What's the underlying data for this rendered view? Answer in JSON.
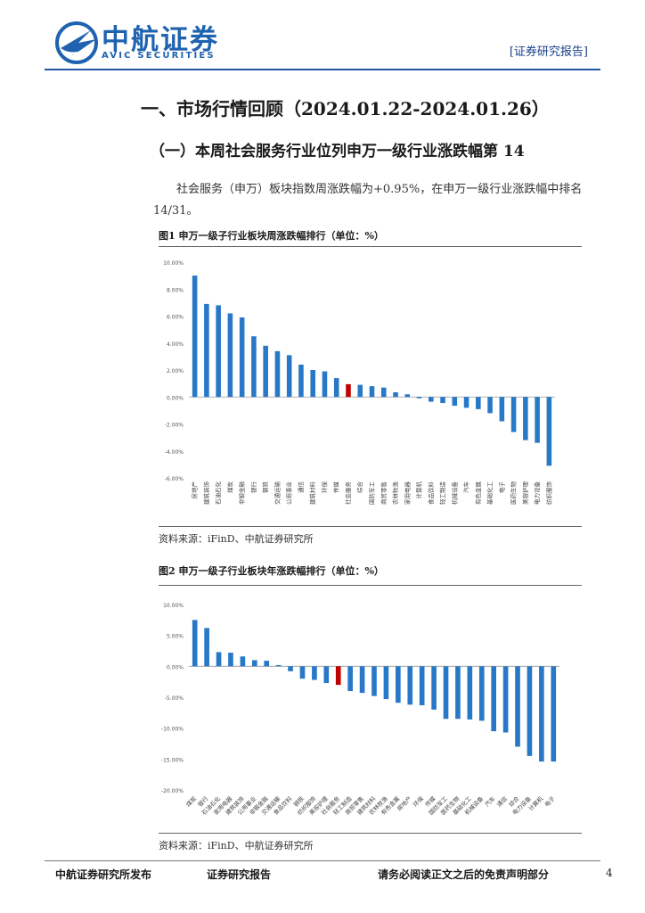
{
  "header": {
    "logo_cn": "中航证券",
    "logo_en": "AVIC SECURITIES",
    "tag": "[证券研究报告]",
    "colors": {
      "brand": "#1f63b0",
      "rule": "#2458a6"
    }
  },
  "section": {
    "title": "一、市场行情回顾（2024.01.22-2024.01.26）",
    "subtitle": "（一）本周社会服务行业位列申万一级行业涨跌幅第 14",
    "para_line1": "社会服务（申万）板块指数周涨跌幅为+0.95%，在申万一级行业涨跌幅中排名",
    "para_line2": "14/31。"
  },
  "figures": [
    {
      "title": "图1 申万一级子行业板块周涨跌幅排行（单位：%）",
      "source": "资料来源：iFinD、中航证券研究所"
    },
    {
      "title": "图2 申万一级子行业板块年涨跌幅排行（单位：%）",
      "source": "资料来源：iFinD、中航证券研究所"
    }
  ],
  "chart_data": [
    {
      "type": "bar",
      "title": "图1 申万一级子行业板块周涨跌幅排行（单位：%）",
      "ylim": [
        -6,
        10
      ],
      "yticks": [
        10,
        8,
        6,
        4,
        2,
        0,
        -2,
        -4,
        -6
      ],
      "ytick_labels": [
        "10.00%",
        "8.00%",
        "6.00%",
        "4.00%",
        "2.00%",
        "0.00%",
        "-2.00%",
        "-4.00%",
        "-6.00%"
      ],
      "grid": false,
      "bar_color": "#2878c8",
      "highlight_color": "#c00000",
      "highlight_category": "社会服务",
      "categories": [
        "房地产",
        "建筑装饰",
        "石油石化",
        "煤炭",
        "非银金融",
        "银行",
        "钢铁",
        "交通运输",
        "公用事业",
        "通信",
        "建筑材料",
        "环保",
        "传媒",
        "社会服务",
        "综合",
        "国防军工",
        "商贸零售",
        "农林牧渔",
        "家用电器",
        "计算机",
        "食品饮料",
        "轻工制造",
        "机械设备",
        "汽车",
        "有色金属",
        "基础化工",
        "电子",
        "医药生物",
        "美容护理",
        "电力设备",
        "纺织服饰"
      ],
      "values": [
        9.0,
        6.9,
        6.8,
        6.2,
        5.9,
        4.5,
        3.8,
        3.4,
        3.1,
        2.4,
        2.0,
        1.9,
        1.4,
        0.95,
        0.9,
        0.8,
        0.7,
        0.35,
        0.2,
        -0.1,
        -0.35,
        -0.45,
        -0.65,
        -0.8,
        -0.9,
        -1.2,
        -1.8,
        -2.6,
        -3.2,
        -3.4,
        -5.1
      ]
    },
    {
      "type": "bar",
      "title": "图2 申万一级子行业板块年涨跌幅排行（单位：%）",
      "ylim": [
        -20,
        10
      ],
      "yticks": [
        10,
        5,
        0,
        -5,
        -10,
        -15,
        -20
      ],
      "ytick_labels": [
        "10.00%",
        "5.00%",
        "0.00%",
        "-5.00%",
        "-10.00%",
        "-15.00%",
        "-20.00%"
      ],
      "grid": false,
      "bar_color": "#2878c8",
      "highlight_color": "#c00000",
      "highlight_category": "社会服务",
      "categories": [
        "煤炭",
        "银行",
        "石油石化",
        "家用电器",
        "建筑装饰",
        "公用事业",
        "非银金融",
        "交通运输",
        "食品饮料",
        "钢铁",
        "纺织服饰",
        "美容护理",
        "社会服务",
        "轻工制造",
        "商贸零售",
        "建筑材料",
        "农林牧渔",
        "有色金属",
        "房地产",
        "环保",
        "传媒",
        "国防军工",
        "医药生物",
        "基础化工",
        "机械设备",
        "汽车",
        "通信",
        "综合",
        "电力设备",
        "计算机",
        "电子"
      ],
      "values": [
        7.5,
        6.2,
        2.3,
        2.2,
        1.6,
        1.0,
        0.9,
        0.2,
        -0.8,
        -2.0,
        -2.2,
        -2.7,
        -3.0,
        -4.0,
        -4.3,
        -4.8,
        -5.3,
        -5.9,
        -6.2,
        -6.3,
        -7.0,
        -8.5,
        -8.5,
        -8.6,
        -8.8,
        -10.5,
        -10.7,
        -13.0,
        -14.5,
        -15.4,
        -15.4
      ]
    }
  ],
  "footer": {
    "left": "中航证券研究所发布",
    "center": "证券研究报告",
    "right": "请务必阅读正文之后的免责声明部分",
    "page": "4"
  }
}
